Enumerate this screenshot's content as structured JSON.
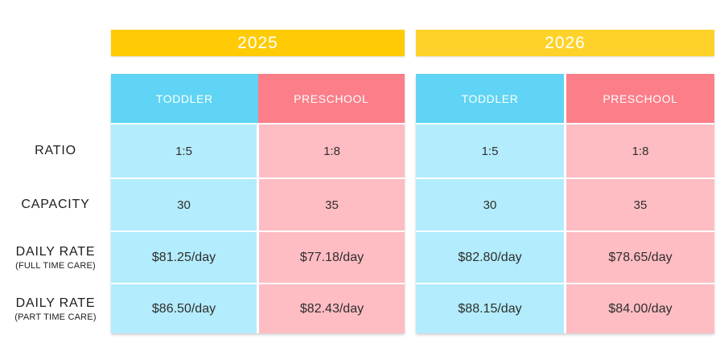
{
  "colors": {
    "year_2025_bg": "#FFCB05",
    "year_2026_bg": "#FFD229",
    "toddler_header_bg": "#5FD4F4",
    "preschool_header_bg": "#FB7E89",
    "toddler_cell_bg": "#B3ECFC",
    "preschool_cell_bg": "#FEBDC3",
    "header_text": "#FFFFFF",
    "body_text": "#2E2E2E"
  },
  "row_labels": [
    {
      "title": "RATIO"
    },
    {
      "title": "CAPACITY"
    },
    {
      "title": "DAILY RATE",
      "subtitle": "(FULL TIME CARE)"
    },
    {
      "title": "DAILY RATE",
      "subtitle": "(PART TIME CARE)"
    }
  ],
  "groups": [
    {
      "year": "2025",
      "columns": [
        "TODDLER",
        "PRESCHOOL"
      ],
      "ratio": [
        "1:5",
        "1:8"
      ],
      "capacity": [
        "30",
        "35"
      ],
      "daily_rate_full": [
        "$81.25/day",
        "$77.18/day"
      ],
      "daily_rate_part": [
        "$86.50/day",
        "$82.43/day"
      ]
    },
    {
      "year": "2026",
      "columns": [
        "TODDLER",
        "PRESCHOOL"
      ],
      "ratio": [
        "1:5",
        "1:8"
      ],
      "capacity": [
        "30",
        "35"
      ],
      "daily_rate_full": [
        "$82.80/day",
        "$78.65/day"
      ],
      "daily_rate_part": [
        "$88.15/day",
        "$84.00/day"
      ]
    }
  ],
  "chart_data": [
    {
      "type": "table",
      "title": "2025",
      "columns": [
        "",
        "TODDLER",
        "PRESCHOOL"
      ],
      "rows": [
        [
          "RATIO",
          "1:5",
          "1:8"
        ],
        [
          "CAPACITY",
          "30",
          "35"
        ],
        [
          "DAILY RATE (FULL TIME CARE)",
          "$81.25/day",
          "$77.18/day"
        ],
        [
          "DAILY RATE (PART TIME CARE)",
          "$86.50/day",
          "$82.43/day"
        ]
      ]
    },
    {
      "type": "table",
      "title": "2026",
      "columns": [
        "",
        "TODDLER",
        "PRESCHOOL"
      ],
      "rows": [
        [
          "RATIO",
          "1:5",
          "1:8"
        ],
        [
          "CAPACITY",
          "30",
          "35"
        ],
        [
          "DAILY RATE (FULL TIME CARE)",
          "$82.80/day",
          "$78.65/day"
        ],
        [
          "DAILY RATE (PART TIME CARE)",
          "$88.15/day",
          "$84.00/day"
        ]
      ]
    }
  ]
}
